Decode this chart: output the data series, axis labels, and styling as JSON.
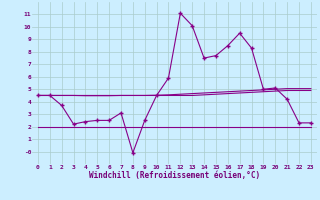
{
  "x": [
    0,
    1,
    2,
    3,
    4,
    5,
    6,
    7,
    8,
    9,
    10,
    11,
    12,
    13,
    14,
    15,
    16,
    17,
    18,
    19,
    20,
    21,
    22,
    23
  ],
  "line_main": [
    4.5,
    4.5,
    3.7,
    2.2,
    2.4,
    2.5,
    2.5,
    3.1,
    -0.1,
    2.5,
    4.5,
    5.9,
    11.1,
    10.1,
    7.5,
    7.7,
    8.5,
    9.5,
    8.3,
    5.0,
    5.1,
    4.2,
    2.3,
    2.3
  ],
  "line_flat1": [
    4.5,
    4.5,
    4.5,
    4.5,
    4.5,
    4.5,
    4.5,
    4.5,
    4.5,
    4.5,
    4.5,
    4.5,
    4.5,
    4.5,
    4.55,
    4.6,
    4.65,
    4.7,
    4.75,
    4.8,
    4.85,
    4.9,
    4.9,
    4.9
  ],
  "line_flat2": [
    4.5,
    4.5,
    4.5,
    4.5,
    4.48,
    4.48,
    4.48,
    4.5,
    4.5,
    4.5,
    4.52,
    4.55,
    4.6,
    4.65,
    4.7,
    4.75,
    4.8,
    4.85,
    4.9,
    4.95,
    5.0,
    5.05,
    5.05,
    5.05
  ],
  "line_flat3": [
    2.0,
    2.0,
    2.0,
    2.0,
    2.0,
    2.0,
    2.0,
    2.0,
    2.0,
    2.0,
    2.0,
    2.0,
    2.0,
    2.0,
    2.0,
    2.0,
    2.0,
    2.0,
    2.0,
    2.0,
    2.0,
    2.0,
    2.0,
    2.0
  ],
  "line_color": "#880088",
  "bg_color": "#cceeff",
  "grid_color": "#aacccc",
  "xlabel": "Windchill (Refroidissement éolien,°C)",
  "ylim": [
    -1,
    12
  ],
  "xlim": [
    -0.5,
    23.5
  ],
  "yticks": [
    0,
    1,
    2,
    3,
    4,
    5,
    6,
    7,
    8,
    9,
    10,
    11
  ],
  "ytick_labels": [
    "-0",
    "1",
    "2",
    "3",
    "4",
    "5",
    "6",
    "7",
    "8",
    "9",
    "10",
    "11"
  ],
  "xticks": [
    0,
    1,
    2,
    3,
    4,
    5,
    6,
    7,
    8,
    9,
    10,
    11,
    12,
    13,
    14,
    15,
    16,
    17,
    18,
    19,
    20,
    21,
    22,
    23
  ]
}
